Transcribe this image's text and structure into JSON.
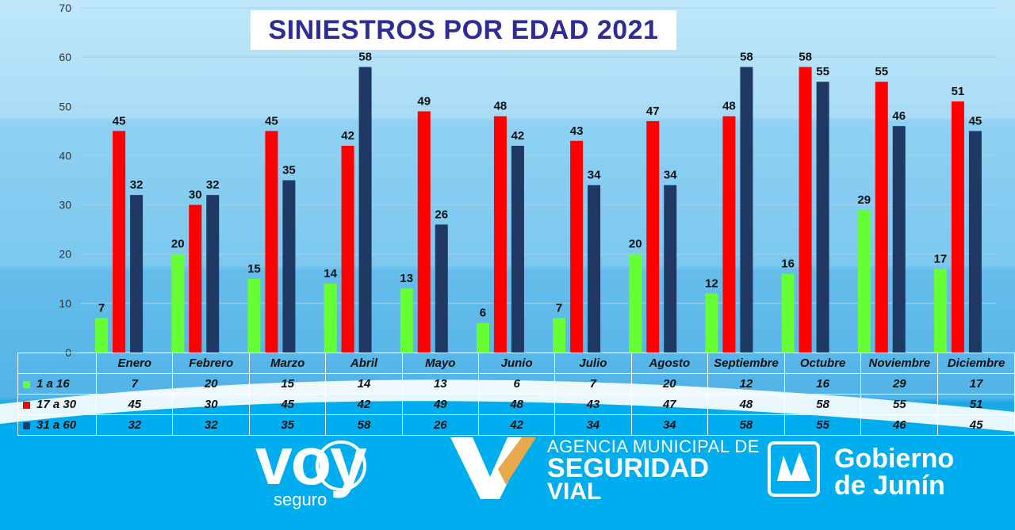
{
  "chart_data": {
    "type": "bar",
    "title": "SINIESTROS POR EDAD 2021",
    "categories": [
      "Enero",
      "Febrero",
      "Marzo",
      "Abril",
      "Mayo",
      "Junio",
      "Julio",
      "Agosto",
      "Septiembre",
      "Octubre",
      "Noviembre",
      "Diciembre"
    ],
    "series": [
      {
        "name": "1 a 16",
        "color": "#66ff33",
        "values": [
          7,
          20,
          15,
          14,
          13,
          6,
          7,
          20,
          12,
          16,
          29,
          17
        ]
      },
      {
        "name": "17 a 30",
        "color": "#ff0000",
        "values": [
          45,
          30,
          45,
          42,
          49,
          48,
          43,
          47,
          48,
          58,
          55,
          51
        ]
      },
      {
        "name": "31 a 60",
        "color": "#1f3864",
        "values": [
          32,
          32,
          35,
          58,
          26,
          42,
          34,
          34,
          58,
          55,
          46,
          45
        ]
      }
    ],
    "ylim": [
      0,
      70
    ],
    "yticks": [
      0,
      10,
      20,
      30,
      40,
      50,
      60,
      70
    ],
    "grid": true,
    "legend": "data-table-below"
  },
  "logos": {
    "voy": "voy",
    "seguro": "seguro",
    "agencia_line1": "AGENCIA MUNICIPAL DE",
    "agencia_line2": "SEGURIDAD",
    "agencia_line3": "VIAL",
    "gobierno_line1": "Gobierno",
    "gobierno_line2": "de Junín"
  }
}
